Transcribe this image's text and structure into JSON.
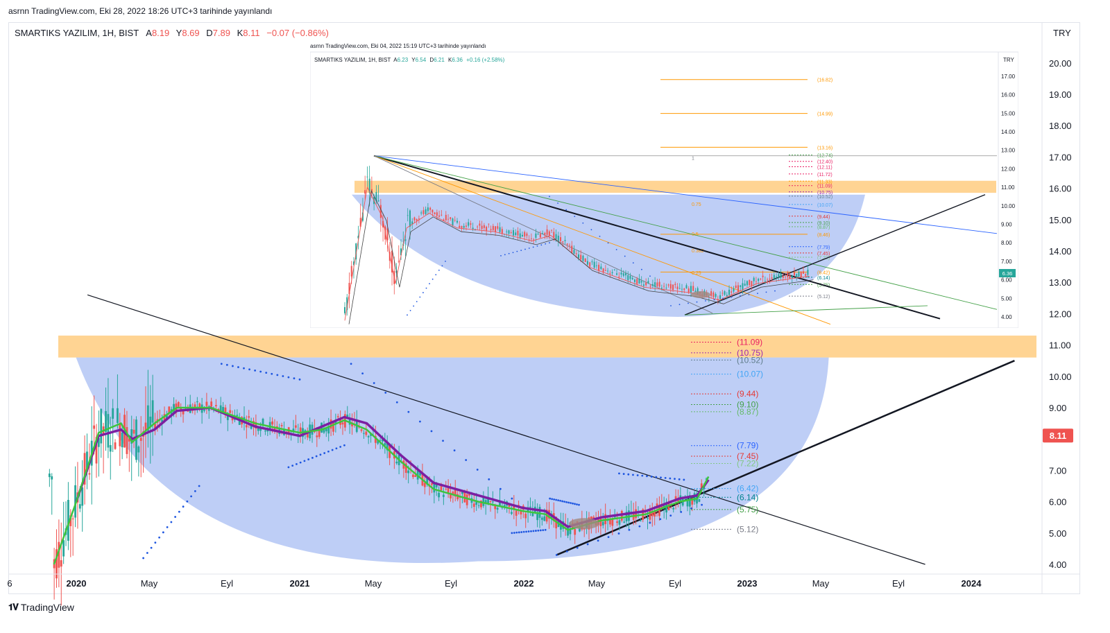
{
  "publish_line": "asrnn TradingView.com, Eki 28, 2022 18:26 UTC+3 tarihinde yayınlandı",
  "legend": {
    "symbol": "SMARTIKS YAZILIM, 1H, BIST",
    "open_label": "A",
    "open": "8.19",
    "high_label": "Y",
    "high": "8.69",
    "low_label": "D",
    "low": "7.89",
    "close_label": "K",
    "close": "8.11",
    "change": "−0.07 (−0.86%)"
  },
  "currency": "TRY",
  "footer_brand": "TradingView",
  "colors": {
    "up": "#26a69a",
    "down": "#ef5350",
    "bowl": "#b3c6f5",
    "zone": "#ffcc80",
    "ema_fast": "#3ec43e",
    "ema_slow": "#7b1fa2",
    "sar": "#1e56e0",
    "price_tag": "#ef5350"
  },
  "inset": {
    "publish_line": "asrnn TradingView.com, Eki 04, 2022 15:19 UTC+3 tarihinde yayınlandı",
    "legend": {
      "symbol": "SMARTIKS YAZILIM, 1H, BIST",
      "open_label": "A",
      "open": "6.23",
      "high_label": "Y",
      "high": "6.54",
      "low_label": "D",
      "low": "6.21",
      "close_label": "K",
      "close": "6.36",
      "change": "+0.16 (+2.58%)"
    },
    "currency": "TRY",
    "y_ticks": [
      "17.00",
      "16.00",
      "15.00",
      "14.00",
      "13.00",
      "12.00",
      "11.00",
      "10.00",
      "9.00",
      "8.00",
      "7.00",
      "6.00",
      "5.00",
      "4.00"
    ],
    "last_price": "6.36",
    "fib_labels": [
      "(16.82)",
      "(14.99)",
      "(13.16)",
      "(12.74)",
      "(12.40)",
      "(12.11)",
      "(11.72)",
      "(11.33)",
      "(11.09)",
      "(10.75)",
      "(10.52)",
      "(10.07)",
      "(9.44)",
      "(9.10)",
      "(8.87)",
      "(8.46)",
      "(7.79)",
      "(7.45)",
      "(7.22)",
      "(6.42)",
      "(6.14)",
      "(5.75)",
      "(5.12)"
    ],
    "retracement_labels": [
      "1",
      "0.75",
      "0.5",
      "0.382",
      "0.25"
    ]
  },
  "chart_data": {
    "type": "candlestick",
    "x_ticks": [
      "6",
      "2020",
      "May",
      "Eyl",
      "2021",
      "May",
      "Eyl",
      "2022",
      "May",
      "Eyl",
      "2023",
      "May",
      "Eyl",
      "2024"
    ],
    "y_ticks": [
      "20.00",
      "19.00",
      "18.00",
      "17.00",
      "16.00",
      "15.00",
      "14.00",
      "13.00",
      "12.00",
      "11.00",
      "10.00",
      "9.00",
      "8.00",
      "7.00",
      "6.00",
      "5.00",
      "4.00"
    ],
    "last_price": "8.11",
    "levels": [
      {
        "label": "(11.09)",
        "color": "#e91e63"
      },
      {
        "label": "(10.75)",
        "color": "#9c27b0"
      },
      {
        "label": "(10.52)",
        "color": "#607d8b"
      },
      {
        "label": "(10.07)",
        "color": "#42a5f5"
      },
      {
        "label": "(9.44)",
        "color": "#e53935"
      },
      {
        "label": "(9.10)",
        "color": "#43a047"
      },
      {
        "label": "(8.87)",
        "color": "#66bb6a"
      },
      {
        "label": "(7.79)",
        "color": "#2962ff"
      },
      {
        "label": "(7.45)",
        "color": "#e53935"
      },
      {
        "label": "(7.22)",
        "color": "#81c784"
      },
      {
        "label": "(6.42)",
        "color": "#42a5f5"
      },
      {
        "label": "(6.14)",
        "color": "#00838f"
      },
      {
        "label": "(5.75)",
        "color": "#43a047"
      },
      {
        "label": "(5.12)",
        "color": "#787b86"
      }
    ],
    "level_values": [
      11.09,
      10.75,
      10.52,
      10.07,
      9.44,
      9.1,
      8.87,
      7.79,
      7.45,
      7.22,
      6.42,
      6.14,
      5.75,
      5.12
    ],
    "resistance_zone": [
      10.6,
      11.3
    ],
    "ema_fast": [
      [
        2019.9,
        4.0
      ],
      [
        2020.0,
        6.0
      ],
      [
        2020.1,
        8.2
      ],
      [
        2020.2,
        8.5
      ],
      [
        2020.25,
        7.9
      ],
      [
        2020.35,
        8.5
      ],
      [
        2020.45,
        9.0
      ],
      [
        2020.6,
        9.0
      ],
      [
        2020.8,
        8.5
      ],
      [
        2021.0,
        8.2
      ],
      [
        2021.1,
        8.3
      ],
      [
        2021.2,
        8.6
      ],
      [
        2021.3,
        8.3
      ],
      [
        2021.45,
        7.3
      ],
      [
        2021.6,
        6.4
      ],
      [
        2021.8,
        6.0
      ],
      [
        2022.0,
        5.7
      ],
      [
        2022.1,
        5.6
      ],
      [
        2022.2,
        5.1
      ],
      [
        2022.35,
        5.4
      ],
      [
        2022.55,
        5.6
      ],
      [
        2022.7,
        6.0
      ],
      [
        2022.78,
        6.1
      ],
      [
        2022.83,
        6.8
      ]
    ],
    "ema_slow": [
      [
        2020.0,
        6.0
      ],
      [
        2020.1,
        8.1
      ],
      [
        2020.2,
        8.3
      ],
      [
        2020.25,
        8.0
      ],
      [
        2020.35,
        8.3
      ],
      [
        2020.45,
        8.9
      ],
      [
        2020.6,
        9.0
      ],
      [
        2020.8,
        8.4
      ],
      [
        2021.0,
        8.1
      ],
      [
        2021.1,
        8.4
      ],
      [
        2021.2,
        8.7
      ],
      [
        2021.3,
        8.5
      ],
      [
        2021.45,
        7.5
      ],
      [
        2021.6,
        6.6
      ],
      [
        2021.8,
        6.2
      ],
      [
        2022.0,
        5.8
      ],
      [
        2022.1,
        5.7
      ],
      [
        2022.2,
        5.2
      ],
      [
        2022.35,
        5.5
      ],
      [
        2022.55,
        5.7
      ],
      [
        2022.7,
        6.1
      ],
      [
        2022.78,
        6.2
      ],
      [
        2022.83,
        6.7
      ]
    ],
    "bowl": {
      "center_x": 2021.8,
      "bottom": 4.1,
      "rim": 10.6
    },
    "trendline_down": [
      [
        2020.05,
        12.6
      ],
      [
        2023.8,
        4.0
      ]
    ],
    "trendline_up": [
      [
        2022.15,
        4.3
      ],
      [
        2024.2,
        10.5
      ]
    ]
  }
}
